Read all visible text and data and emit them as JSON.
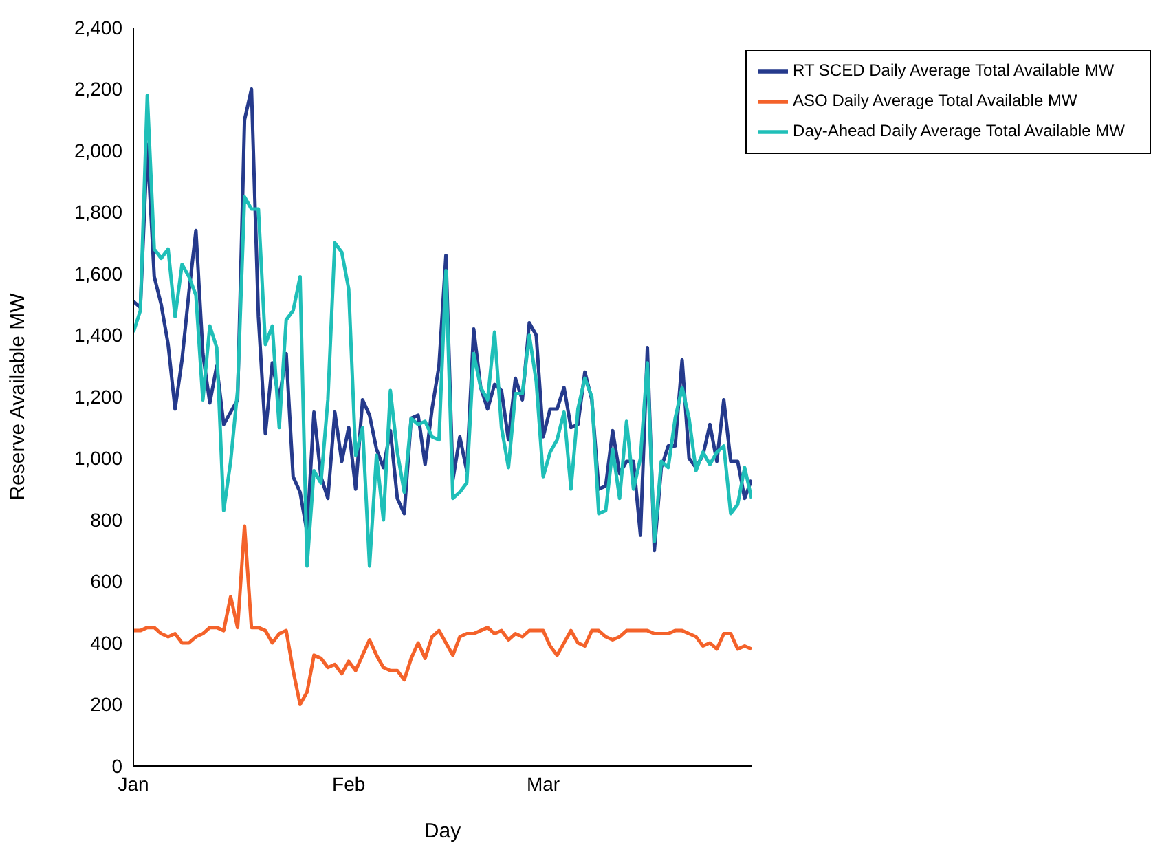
{
  "chart_data": {
    "type": "line",
    "xlabel": "Day",
    "ylabel": "Reserve Available MW",
    "x": [
      "--01-01",
      "--01-02",
      "--01-03",
      "--01-04",
      "--01-05",
      "--01-06",
      "--01-07",
      "--01-08",
      "--01-09",
      "--01-10",
      "--01-11",
      "--01-12",
      "--01-13",
      "--01-14",
      "--01-15",
      "--01-16",
      "--01-17",
      "--01-18",
      "--01-19",
      "--01-20",
      "--01-21",
      "--01-22",
      "--01-23",
      "--01-24",
      "--01-25",
      "--01-26",
      "--01-27",
      "--01-28",
      "--01-29",
      "--01-30",
      "--01-31",
      "--02-01",
      "--02-02",
      "--02-03",
      "--02-04",
      "--02-05",
      "--02-06",
      "--02-07",
      "--02-08",
      "--02-09",
      "--02-10",
      "--02-11",
      "--02-12",
      "--02-13",
      "--02-14",
      "--02-15",
      "--02-16",
      "--02-17",
      "--02-18",
      "--02-19",
      "--02-20",
      "--02-21",
      "--02-22",
      "--02-23",
      "--02-24",
      "--02-25",
      "--02-26",
      "--02-27",
      "--02-28",
      "--03-01",
      "--03-02",
      "--03-03",
      "--03-04",
      "--03-05",
      "--03-06",
      "--03-07",
      "--03-08",
      "--03-09",
      "--03-10",
      "--03-11",
      "--03-12",
      "--03-13",
      "--03-14",
      "--03-15",
      "--03-16",
      "--03-17",
      "--03-18",
      "--03-19",
      "--03-20",
      "--03-21",
      "--03-22",
      "--03-23",
      "--03-24",
      "--03-25",
      "--03-26",
      "--03-27",
      "--03-28",
      "--03-29",
      "--03-30",
      "--03-31"
    ],
    "series": [
      {
        "name": "RT SCED Daily Average Total Available MW",
        "color": "#253a8c",
        "values": [
          1510,
          1490,
          2020,
          1590,
          1500,
          1370,
          1160,
          1320,
          1540,
          1740,
          1340,
          1180,
          1300,
          1110,
          1150,
          1190,
          2100,
          2200,
          1460,
          1080,
          1310,
          1190,
          1340,
          940,
          890,
          760,
          1150,
          940,
          870,
          1150,
          990,
          1100,
          900,
          1190,
          1140,
          1030,
          970,
          1090,
          870,
          820,
          1130,
          1140,
          980,
          1160,
          1300,
          1660,
          930,
          1070,
          960,
          1420,
          1230,
          1160,
          1240,
          1220,
          1060,
          1260,
          1190,
          1440,
          1400,
          1070,
          1160,
          1160,
          1230,
          1100,
          1110,
          1280,
          1190,
          900,
          910,
          1090,
          950,
          990,
          990,
          750,
          1360,
          700,
          970,
          1040,
          1040,
          1320,
          1000,
          970,
          1010,
          1110,
          990,
          1190,
          990,
          990,
          870,
          930
        ]
      },
      {
        "name": "ASO Daily Average Total Available MW",
        "color": "#f4622a",
        "values": [
          440,
          440,
          450,
          450,
          430,
          420,
          430,
          400,
          400,
          420,
          430,
          450,
          450,
          440,
          550,
          450,
          780,
          450,
          450,
          440,
          400,
          430,
          440,
          310,
          200,
          240,
          360,
          350,
          320,
          330,
          300,
          340,
          310,
          360,
          410,
          360,
          320,
          310,
          310,
          280,
          350,
          400,
          350,
          420,
          440,
          400,
          360,
          420,
          430,
          430,
          440,
          450,
          430,
          440,
          410,
          430,
          420,
          440,
          440,
          440,
          390,
          360,
          400,
          440,
          400,
          390,
          440,
          440,
          420,
          410,
          420,
          440,
          440,
          440,
          440,
          430,
          430,
          430,
          440,
          440,
          430,
          420,
          390,
          400,
          380,
          430,
          430,
          380,
          390,
          380
        ]
      },
      {
        "name": "Day-Ahead Daily Average Total Available MW",
        "color": "#1fbfb8",
        "values": [
          1410,
          1480,
          2180,
          1680,
          1650,
          1680,
          1460,
          1630,
          1590,
          1530,
          1190,
          1430,
          1360,
          830,
          990,
          1220,
          1850,
          1810,
          1810,
          1370,
          1430,
          1100,
          1450,
          1480,
          1590,
          650,
          960,
          920,
          1190,
          1700,
          1670,
          1550,
          1010,
          1100,
          650,
          1010,
          800,
          1220,
          1020,
          890,
          1130,
          1110,
          1120,
          1070,
          1060,
          1610,
          870,
          890,
          920,
          1340,
          1230,
          1190,
          1410,
          1100,
          970,
          1210,
          1210,
          1400,
          1250,
          940,
          1020,
          1060,
          1150,
          900,
          1160,
          1260,
          1200,
          820,
          830,
          1030,
          870,
          1120,
          900,
          1000,
          1310,
          730,
          990,
          970,
          1130,
          1230,
          1130,
          960,
          1020,
          980,
          1020,
          1040,
          820,
          850,
          970,
          870
        ]
      }
    ],
    "xlim": [
      "--01-01",
      "--03-31"
    ],
    "xticks": [
      {
        "value": "--01-01",
        "label": "Jan"
      },
      {
        "value": "--02-01",
        "label": "Feb"
      },
      {
        "value": "--03-01",
        "label": "Mar"
      }
    ],
    "ylim": [
      0,
      2400
    ],
    "yticks": [
      0,
      200,
      400,
      600,
      800,
      {
        "value": 1000,
        "label": "1,000"
      },
      {
        "value": 1200,
        "label": "1,200"
      },
      {
        "value": 1400,
        "label": "1,400"
      },
      {
        "value": 1600,
        "label": "1,600"
      },
      {
        "value": 1800,
        "label": "1,800"
      },
      {
        "value": 2000,
        "label": "2,000"
      },
      {
        "value": 2200,
        "label": "2,200"
      },
      {
        "value": 2400,
        "label": "2,400"
      }
    ],
    "grid": false,
    "legend": "top right",
    "marker": "none",
    "line_style": "solid"
  }
}
